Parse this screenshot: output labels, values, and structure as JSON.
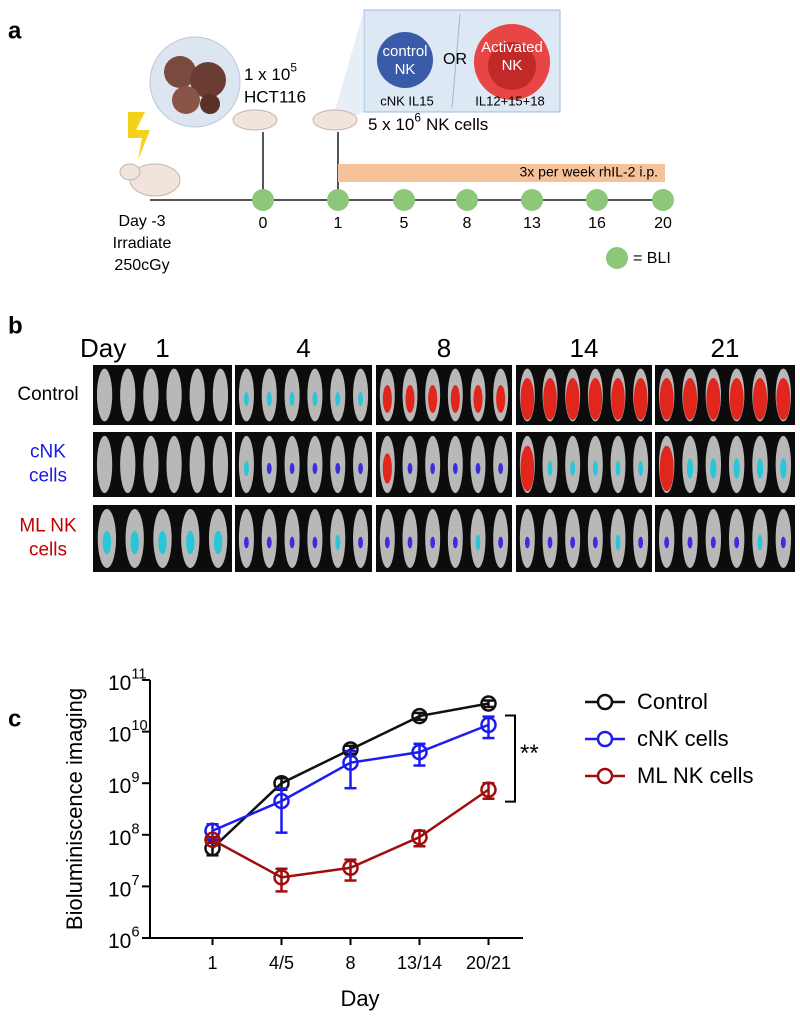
{
  "panel_a": {
    "label": "a",
    "tumor": {
      "dose": "1 x 10",
      "exponent": "5",
      "line": "HCT116"
    },
    "nk_dose": {
      "dose": "5 x 10",
      "exponent": "6",
      "unit": "NK cells"
    },
    "control_nk": [
      "control",
      "NK"
    ],
    "or": "OR",
    "activated_nk": [
      "Activated",
      "NK"
    ],
    "cnk_caption": "cNK IL15",
    "ml_caption": "IL12+15+18",
    "il2": "3x per week rhIL-2 i.p.",
    "irradiation": [
      "Day -3",
      "Irradiate",
      "250cGy"
    ],
    "timepoints": [
      "0",
      "1",
      "5",
      "8",
      "13",
      "16",
      "20"
    ],
    "bli_legend": "= BLI"
  },
  "panel_b": {
    "label": "b",
    "day_label": "Day",
    "days": [
      "1",
      "4",
      "8",
      "14",
      "21"
    ],
    "rows": [
      {
        "lines": [
          "Control"
        ],
        "color": "#000000"
      },
      {
        "lines": [
          "cNK",
          "cells"
        ],
        "color": "#1a1ae6"
      },
      {
        "lines": [
          "ML NK",
          "cells"
        ],
        "color": "#c00000"
      }
    ]
  },
  "chart_data": {
    "type": "line",
    "panel_label": "c",
    "y_label": "Bioluminiscence imaging",
    "x_label": "Day",
    "categories": [
      "1",
      "4/5",
      "8",
      "13/14",
      "20/21"
    ],
    "log_scale": true,
    "ylim": [
      1000000,
      100000000000
    ],
    "yticks": [
      {
        "value": 1000000,
        "label": "10",
        "exponent": "6"
      },
      {
        "value": 10000000,
        "label": "10",
        "exponent": "7"
      },
      {
        "value": 100000000,
        "label": "10",
        "exponent": "8"
      },
      {
        "value": 1000000000,
        "label": "10",
        "exponent": "9"
      },
      {
        "value": 10000000000,
        "label": "10",
        "exponent": "10"
      },
      {
        "value": 100000000000,
        "label": "10",
        "exponent": "11"
      }
    ],
    "series": [
      {
        "name": "Control",
        "color": "#111111",
        "values": [
          55000000,
          1000000000,
          4500000000,
          20000000000,
          35000000000
        ],
        "errors": [
          15000000,
          250000000,
          800000000,
          3000000000,
          5000000000
        ]
      },
      {
        "name": "cNK cells",
        "color": "#1c1cf0",
        "values": [
          120000000,
          450000000,
          2500000000,
          4000000000,
          13500000000
        ],
        "errors": [
          40000000,
          340000000,
          1700000000,
          1800000000,
          6000000000
        ]
      },
      {
        "name": "ML NK cells",
        "color": "#a00d0d",
        "values": [
          80000000,
          15000000,
          23000000,
          90000000,
          750000000
        ],
        "errors": [
          10000000,
          7000000,
          10000000,
          30000000,
          250000000
        ]
      }
    ],
    "annotation": "**"
  }
}
